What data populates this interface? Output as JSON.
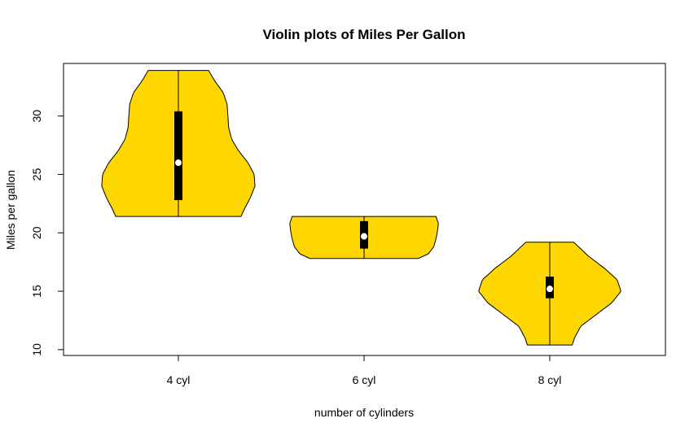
{
  "chart_data": {
    "type": "violin",
    "title": "Violin plots of Miles Per Gallon",
    "xlabel": "number of cylinders",
    "ylabel": "Miles per gallon",
    "categories": [
      "4 cyl",
      "6 cyl",
      "8 cyl"
    ],
    "yticks": [
      "10",
      "15",
      "20",
      "25",
      "30"
    ],
    "ylim": [
      9.5,
      34.5
    ],
    "fill_color": "#FFD700",
    "series": [
      {
        "category": "4 cyl",
        "min": 21.4,
        "q1": 22.8,
        "median": 26.0,
        "q3": 30.4,
        "max": 33.9,
        "density": [
          [
            21.4,
            0.81
          ],
          [
            22.0,
            0.85
          ],
          [
            23.0,
            0.93
          ],
          [
            24.0,
            0.99
          ],
          [
            25.0,
            0.98
          ],
          [
            26.0,
            0.9
          ],
          [
            27.0,
            0.78
          ],
          [
            28.0,
            0.69
          ],
          [
            29.0,
            0.65
          ],
          [
            30.0,
            0.64
          ],
          [
            31.0,
            0.63
          ],
          [
            32.0,
            0.58
          ],
          [
            33.0,
            0.47
          ],
          [
            33.9,
            0.39
          ]
        ]
      },
      {
        "category": "6 cyl",
        "min": 17.8,
        "q1": 18.65,
        "median": 19.7,
        "q3": 21.0,
        "max": 21.4,
        "density": [
          [
            17.8,
            0.7
          ],
          [
            18.2,
            0.83
          ],
          [
            18.8,
            0.9
          ],
          [
            19.5,
            0.93
          ],
          [
            20.2,
            0.95
          ],
          [
            20.8,
            0.96
          ],
          [
            21.4,
            0.93
          ]
        ]
      },
      {
        "category": "8 cyl",
        "min": 10.4,
        "q1": 14.4,
        "median": 15.2,
        "q3": 16.25,
        "max": 19.2,
        "density": [
          [
            10.4,
            0.29
          ],
          [
            11.0,
            0.32
          ],
          [
            12.0,
            0.4
          ],
          [
            13.0,
            0.6
          ],
          [
            14.0,
            0.8
          ],
          [
            15.0,
            0.92
          ],
          [
            16.0,
            0.87
          ],
          [
            17.0,
            0.7
          ],
          [
            18.0,
            0.5
          ],
          [
            19.2,
            0.31
          ]
        ]
      }
    ]
  }
}
